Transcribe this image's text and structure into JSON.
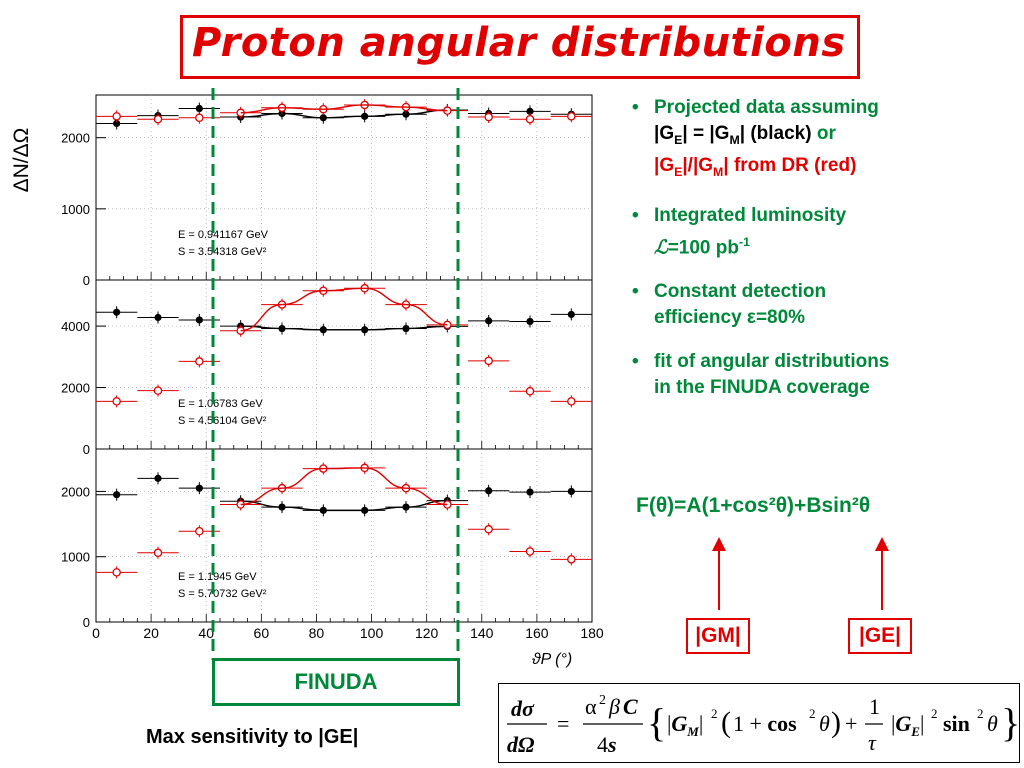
{
  "title": "Proton angular distributions",
  "y_axis_label": "ΔN/ΔΩ",
  "x_axis_label": "ϑP (°)",
  "x_ticks": [
    "0",
    "20",
    "40",
    "60",
    "80",
    "100",
    "120",
    "140",
    "160",
    "180"
  ],
  "colors": {
    "accent_red": "#e00000",
    "accent_green": "#00883a",
    "black_series": "#000000"
  },
  "panels": [
    {
      "ticks": [
        "0",
        "1000",
        "2000"
      ],
      "info_line1": "E = 0.941167 GeV",
      "info_line2": "S = 3.54318 GeV²"
    },
    {
      "ticks": [
        "0",
        "2000",
        "4000"
      ],
      "info_line1": "E = 1.06783 GeV",
      "info_line2": "S = 4.56104 GeV²"
    },
    {
      "ticks": [
        "0",
        "1000",
        "2000"
      ],
      "info_line1": "E = 1.1945 GeV",
      "info_line2": "S = 5.70732 GeV²"
    }
  ],
  "bullets": {
    "b1_line1": "Projected data assuming",
    "b1_ge": "G",
    "b1_eq": " = ",
    "b1_black": " (black)",
    "b1_or": " or",
    "b1_red": " from DR (red)",
    "b2_line1": "Integrated luminosity",
    "b2_line2": "=100 pb",
    "b3_line1": "Constant detection",
    "b3_line2": "efficiency ε=80%",
    "b4_line1": "fit of angular distributions",
    "b4_line2": "in the FINUDA coverage"
  },
  "fit_formula": "F(θ)=A(1+cos²θ)+Bsin²θ",
  "gm_label": "|GM|",
  "ge_label": "|GE|",
  "finuda_label": "FINUDA",
  "max_sensitivity": "Max sensitivity to |GE|",
  "chart_data": [
    {
      "type": "scatter",
      "x": [
        7.5,
        22.5,
        37.5,
        52.5,
        67.5,
        82.5,
        97.5,
        112.5,
        127.5,
        142.5,
        157.5,
        172.5
      ],
      "ylim": [
        0,
        2600
      ],
      "series": [
        {
          "name": "|GE| = |GM| (black)",
          "values": [
            2200,
            2310,
            2410,
            2290,
            2340,
            2280,
            2300,
            2330,
            2390,
            2340,
            2370,
            2330
          ]
        },
        {
          "name": "|GE|/|GM| from DR (red)",
          "values": [
            2300,
            2260,
            2280,
            2350,
            2420,
            2400,
            2460,
            2430,
            2380,
            2290,
            2260,
            2300
          ]
        }
      ]
    },
    {
      "type": "scatter",
      "x": [
        7.5,
        22.5,
        37.5,
        52.5,
        67.5,
        82.5,
        97.5,
        112.5,
        127.5,
        142.5,
        157.5,
        172.5
      ],
      "ylim": [
        0,
        5500
      ],
      "series": [
        {
          "name": "|GE| = |GM| (black)",
          "values": [
            4450,
            4280,
            4200,
            4000,
            3920,
            3880,
            3880,
            3920,
            3990,
            4170,
            4150,
            4380
          ]
        },
        {
          "name": "|GE|/|GM| from DR (red)",
          "values": [
            1550,
            1900,
            2850,
            3850,
            4700,
            5150,
            5230,
            4700,
            4040,
            2870,
            1880,
            1550
          ]
        }
      ]
    },
    {
      "type": "scatter",
      "x": [
        7.5,
        22.5,
        37.5,
        52.5,
        67.5,
        82.5,
        97.5,
        112.5,
        127.5,
        142.5,
        157.5,
        172.5
      ],
      "ylim": [
        0,
        2650
      ],
      "series": [
        {
          "name": "|GE| = |GM| (black)",
          "values": [
            1950,
            2200,
            2050,
            1850,
            1760,
            1710,
            1710,
            1760,
            1860,
            2010,
            1990,
            2000
          ]
        },
        {
          "name": "|GE|/|GM| from DR (red)",
          "values": [
            760,
            1060,
            1390,
            1800,
            2050,
            2350,
            2360,
            2050,
            1800,
            1420,
            1080,
            960
          ]
        }
      ]
    }
  ]
}
